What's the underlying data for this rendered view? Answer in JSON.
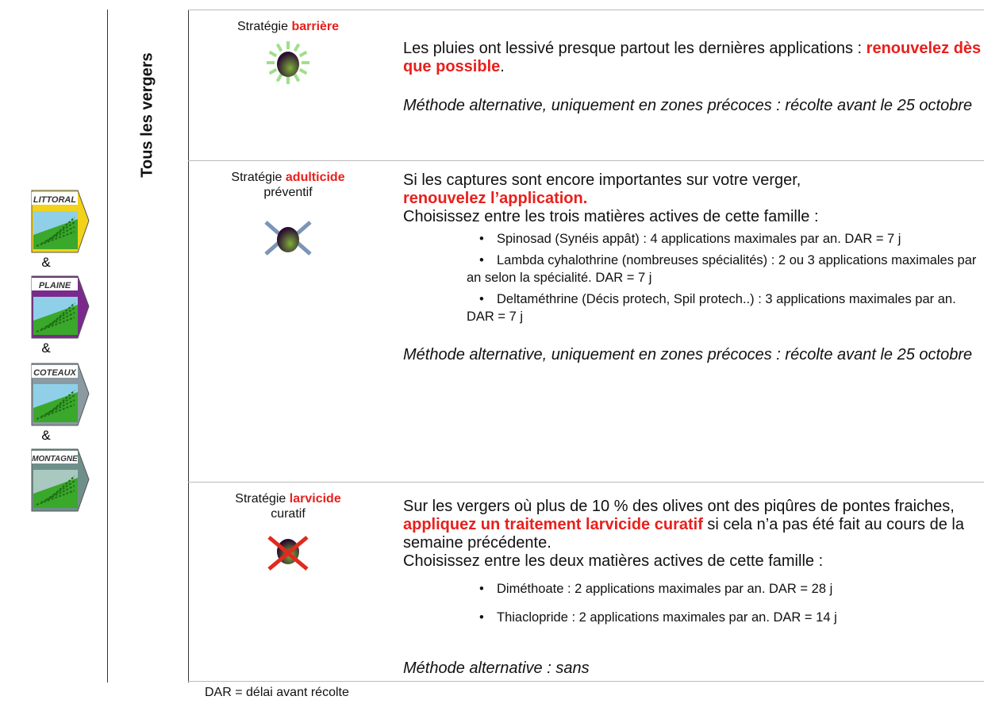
{
  "zones": {
    "labels": [
      "LITTORAL",
      "PLAINE",
      "COTEAUX",
      "MONTAGNE"
    ],
    "separator": "&"
  },
  "scope": "Tous les vergers",
  "rows": [
    {
      "strategy": {
        "prefix": "Stratégie",
        "name": "barrière"
      },
      "blocks": [
        {
          "kind": "paragraph",
          "runs": [
            {
              "text": "Les pluies ont lessivé presque partout les dernières applications : "
            },
            {
              "text": "renouvelez dès que possible",
              "emphasis": true
            },
            {
              "text": "."
            }
          ]
        },
        {
          "kind": "alternative",
          "text": "Méthode alternative, uniquement en zones précoces : récolte avant le 25 octobre"
        }
      ]
    },
    {
      "strategy": {
        "prefix": "Stratégie",
        "name": "adulticide",
        "qualifier": "préventif"
      },
      "blocks": [
        {
          "kind": "paragraph",
          "runs": [
            {
              "text": "Si les captures sont encore importantes sur votre verger,"
            }
          ]
        },
        {
          "kind": "paragraph",
          "runs": [
            {
              "text": "renouvelez l’application.",
              "emphasis": true
            }
          ]
        },
        {
          "kind": "paragraph",
          "runs": [
            {
              "text": "Choisissez entre les trois matières actives de cette famille :"
            }
          ]
        },
        {
          "kind": "bullets",
          "items": [
            "Spinosad (Synéis appât) : 4 applications maximales par an. DAR = 7 j",
            "Lambda cyhalothrine (nombreuses spécialités) : 2 ou 3 applications maximales par an selon la spécialité. DAR = 7 j",
            "Deltaméthrine (Décis protech, Spil protech..) : 3 applications maximales par an. DAR = 7 j"
          ]
        },
        {
          "kind": "alternative",
          "text": "Méthode alternative, uniquement en zones précoces : récolte avant le 25 octobre"
        }
      ]
    },
    {
      "strategy": {
        "prefix": "Stratégie",
        "name": "larvicide",
        "qualifier": "curatif"
      },
      "blocks": [
        {
          "kind": "paragraph",
          "runs": [
            {
              "text": "Sur les vergers où plus de 10 % des olives ont des piqûres de pontes fraiches, "
            },
            {
              "text": "appliquez un traitement larvicide curatif",
              "emphasis": true
            },
            {
              "text": " si cela n’a pas été fait au cours de la semaine précédente."
            }
          ]
        },
        {
          "kind": "paragraph",
          "runs": [
            {
              "text": "Choisissez entre les deux matières actives de cette famille :"
            }
          ]
        },
        {
          "kind": "bullets",
          "items": [
            "Diméthoate : 2 applications maximales par an. DAR = 28 j",
            "Thiaclopride : 2 applications maximales par an. DAR = 14 j"
          ]
        },
        {
          "kind": "alternative",
          "text": "Méthode alternative : sans"
        }
      ]
    }
  ],
  "footnote": "DAR = délai avant récolte"
}
